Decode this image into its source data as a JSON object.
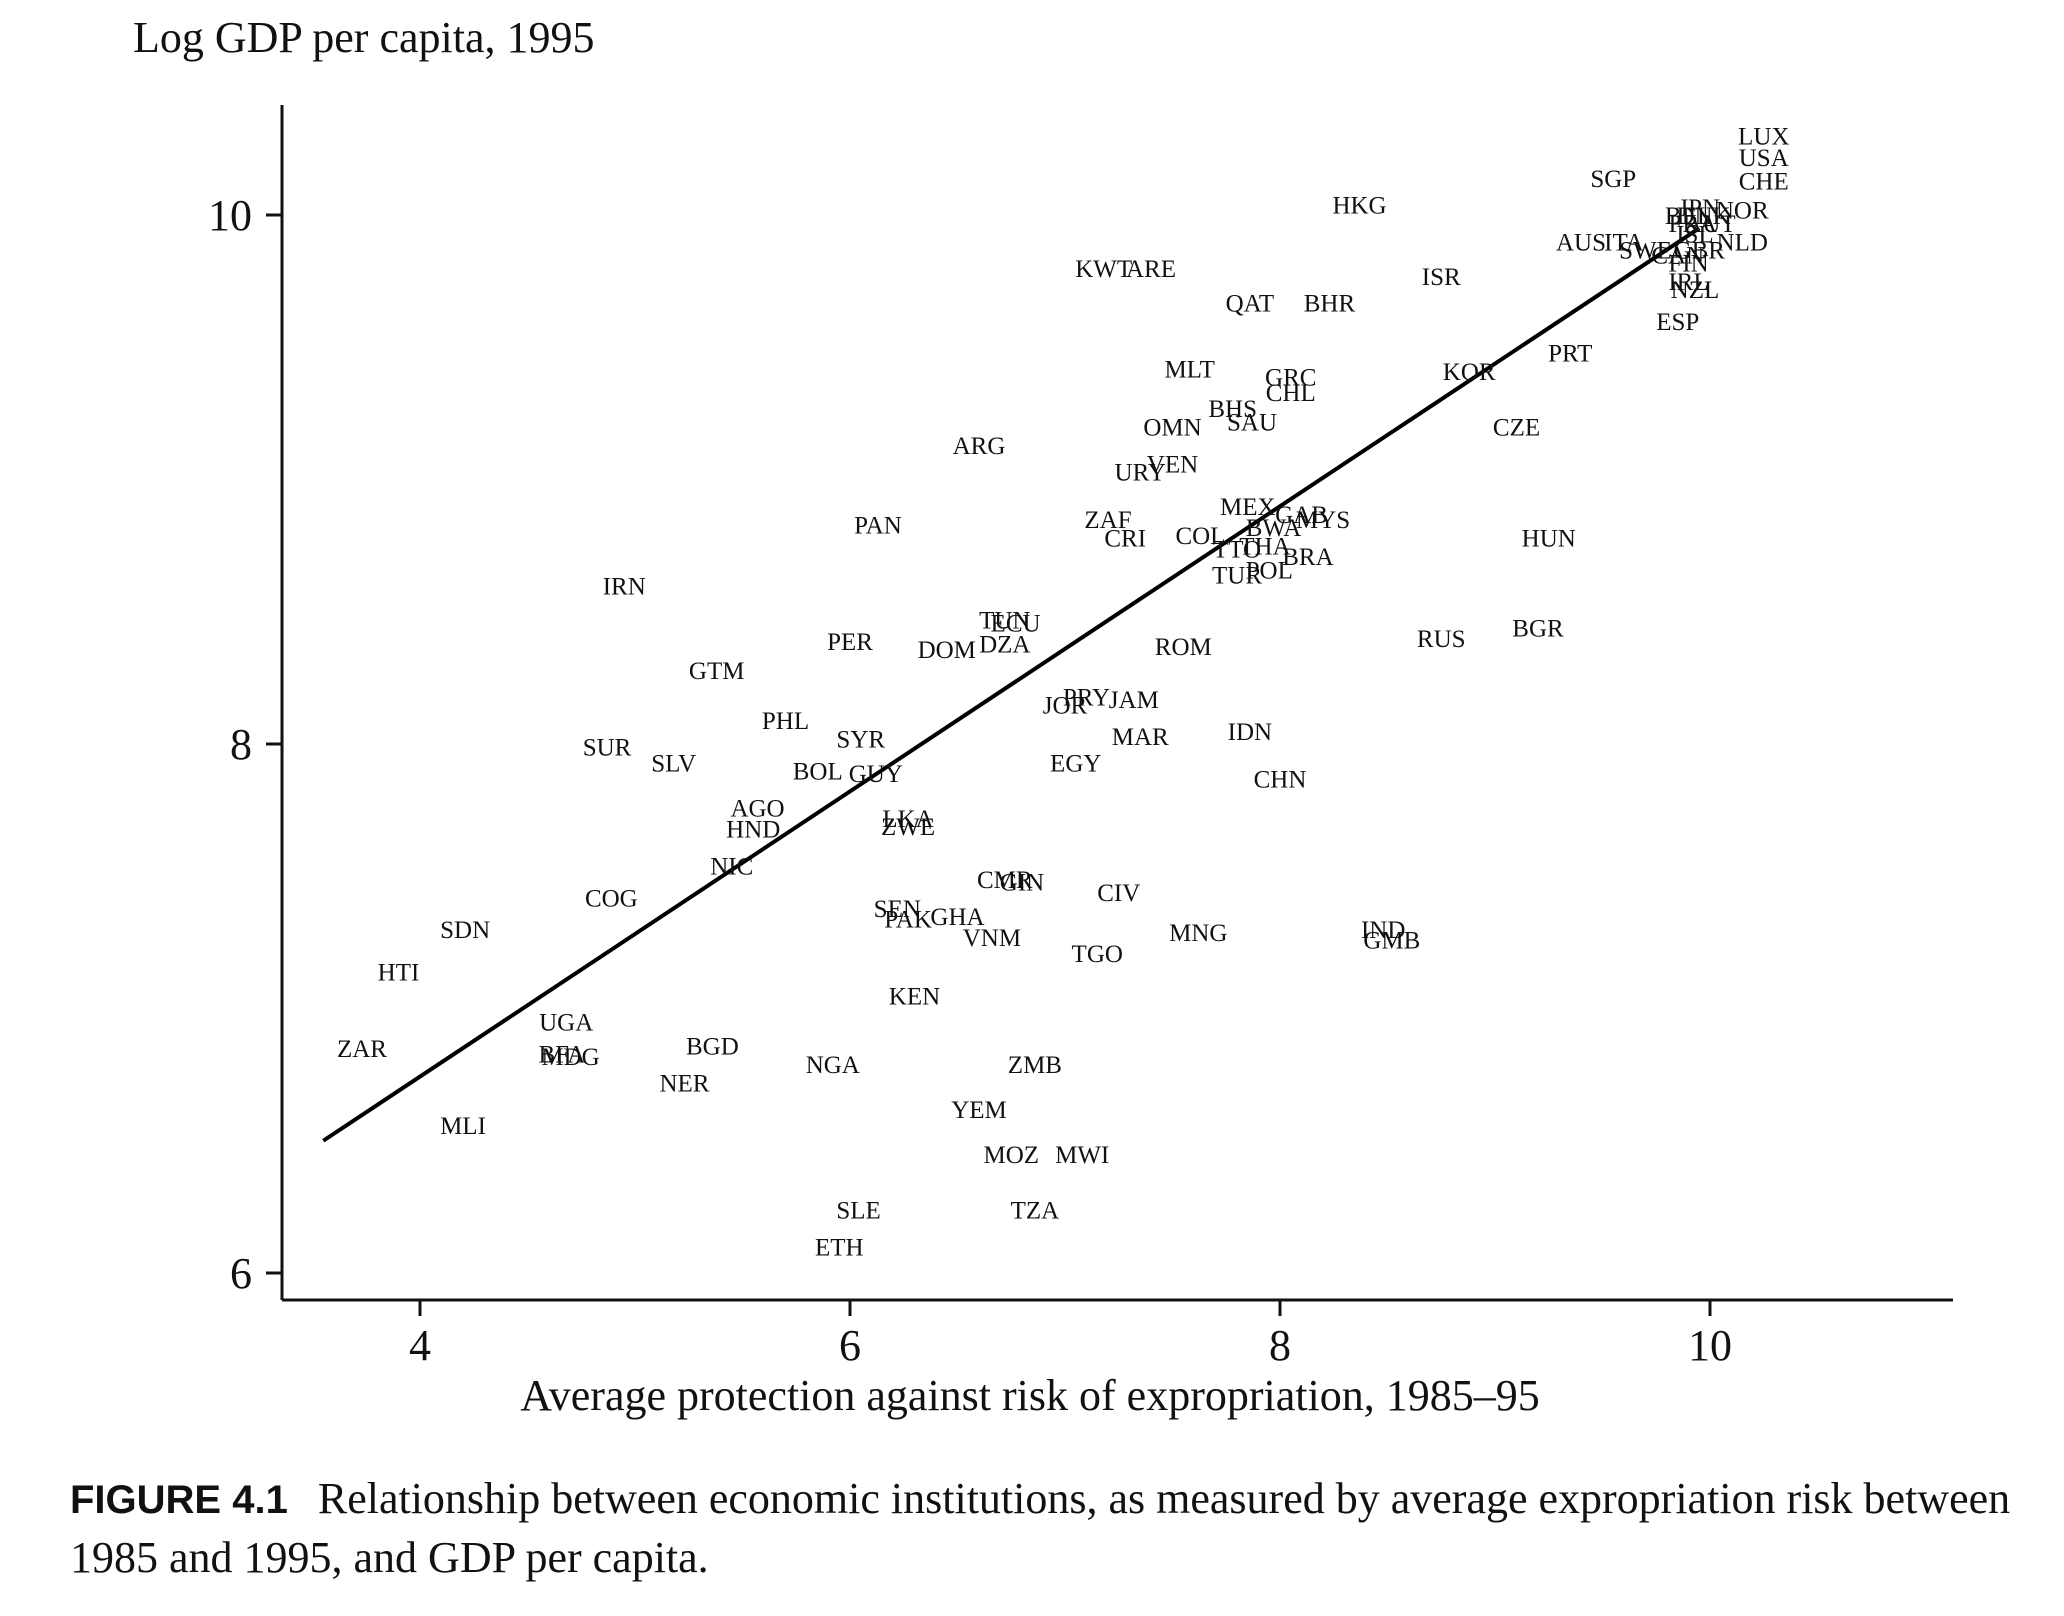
{
  "chart_data": {
    "type": "scatter",
    "ylabel": "Log GDP per capita, 1995",
    "xlabel": "Average protection against risk of expropriation, 1985–95",
    "x_ticks": [
      "4",
      "6",
      "8",
      "10"
    ],
    "y_ticks": [
      "6",
      "8",
      "10"
    ],
    "xlim": [
      3.4,
      11.2
    ],
    "ylim": [
      5.9,
      10.4
    ],
    "grid": false,
    "fit_line": {
      "x": [
        3.55,
        9.95
      ],
      "y": [
        6.5,
        9.95
      ]
    },
    "points": [
      {
        "label": "LUX",
        "x": 10.25,
        "y": 10.3
      },
      {
        "label": "USA",
        "x": 10.25,
        "y": 10.22
      },
      {
        "label": "CHE",
        "x": 10.25,
        "y": 10.13
      },
      {
        "label": "SGP",
        "x": 9.55,
        "y": 10.14
      },
      {
        "label": "HKG",
        "x": 8.37,
        "y": 10.04
      },
      {
        "label": "JPN",
        "x": 9.95,
        "y": 10.03
      },
      {
        "label": "NOR",
        "x": 10.15,
        "y": 10.02
      },
      {
        "label": "BEL",
        "x": 9.9,
        "y": 10.0
      },
      {
        "label": "DNK",
        "x": 9.97,
        "y": 10.0
      },
      {
        "label": "FRA",
        "x": 9.92,
        "y": 9.97
      },
      {
        "label": "AUT",
        "x": 10.0,
        "y": 9.97
      },
      {
        "label": "ISL",
        "x": 9.93,
        "y": 9.93
      },
      {
        "label": "AUS",
        "x": 9.4,
        "y": 9.9
      },
      {
        "label": "ITA",
        "x": 9.6,
        "y": 9.9
      },
      {
        "label": "SWE",
        "x": 9.7,
        "y": 9.87
      },
      {
        "label": "GBR",
        "x": 9.95,
        "y": 9.87
      },
      {
        "label": "NLD",
        "x": 10.15,
        "y": 9.9
      },
      {
        "label": "CAN",
        "x": 9.85,
        "y": 9.85
      },
      {
        "label": "FIN",
        "x": 9.9,
        "y": 9.82
      },
      {
        "label": "IRL",
        "x": 9.9,
        "y": 9.75
      },
      {
        "label": "NZL",
        "x": 9.93,
        "y": 9.72
      },
      {
        "label": "ESP",
        "x": 9.85,
        "y": 9.6
      },
      {
        "label": "ISR",
        "x": 8.75,
        "y": 9.77
      },
      {
        "label": "KWT",
        "x": 7.18,
        "y": 9.8
      },
      {
        "label": "ARE",
        "x": 7.4,
        "y": 9.8
      },
      {
        "label": "QAT",
        "x": 7.86,
        "y": 9.67
      },
      {
        "label": "BHR",
        "x": 8.23,
        "y": 9.67
      },
      {
        "label": "PRT",
        "x": 9.35,
        "y": 9.48
      },
      {
        "label": "KOR",
        "x": 8.88,
        "y": 9.41
      },
      {
        "label": "MLT",
        "x": 7.58,
        "y": 9.42
      },
      {
        "label": "GRC",
        "x": 8.05,
        "y": 9.39
      },
      {
        "label": "CHL",
        "x": 8.05,
        "y": 9.33
      },
      {
        "label": "BHS",
        "x": 7.78,
        "y": 9.27
      },
      {
        "label": "SAU",
        "x": 7.87,
        "y": 9.22
      },
      {
        "label": "CZE",
        "x": 9.1,
        "y": 9.2
      },
      {
        "label": "OMN",
        "x": 7.5,
        "y": 9.2
      },
      {
        "label": "ARG",
        "x": 6.6,
        "y": 9.13
      },
      {
        "label": "URY",
        "x": 7.35,
        "y": 9.03
      },
      {
        "label": "VEN",
        "x": 7.5,
        "y": 9.06
      },
      {
        "label": "MEX",
        "x": 7.85,
        "y": 8.9
      },
      {
        "label": "GAB",
        "x": 8.1,
        "y": 8.87
      },
      {
        "label": "MYS",
        "x": 8.2,
        "y": 8.85
      },
      {
        "label": "BWA",
        "x": 7.97,
        "y": 8.82
      },
      {
        "label": "ZAF",
        "x": 7.2,
        "y": 8.85
      },
      {
        "label": "PAN",
        "x": 6.13,
        "y": 8.83
      },
      {
        "label": "CRI",
        "x": 7.28,
        "y": 8.78
      },
      {
        "label": "COL",
        "x": 7.63,
        "y": 8.79
      },
      {
        "label": "THA",
        "x": 7.93,
        "y": 8.75
      },
      {
        "label": "TTO",
        "x": 7.8,
        "y": 8.74
      },
      {
        "label": "BRA",
        "x": 8.13,
        "y": 8.71
      },
      {
        "label": "HUN",
        "x": 9.25,
        "y": 8.78
      },
      {
        "label": "TUR",
        "x": 7.8,
        "y": 8.64
      },
      {
        "label": "POL",
        "x": 7.95,
        "y": 8.66
      },
      {
        "label": "IRN",
        "x": 4.95,
        "y": 8.6
      },
      {
        "label": "TUN",
        "x": 6.72,
        "y": 8.47
      },
      {
        "label": "ECU",
        "x": 6.77,
        "y": 8.46
      },
      {
        "label": "DZA",
        "x": 6.72,
        "y": 8.38
      },
      {
        "label": "DOM",
        "x": 6.45,
        "y": 8.36
      },
      {
        "label": "PER",
        "x": 6.0,
        "y": 8.39
      },
      {
        "label": "ROM",
        "x": 7.55,
        "y": 8.37
      },
      {
        "label": "RUS",
        "x": 8.75,
        "y": 8.4
      },
      {
        "label": "BGR",
        "x": 9.2,
        "y": 8.44
      },
      {
        "label": "GTM",
        "x": 5.38,
        "y": 8.28
      },
      {
        "label": "JOR",
        "x": 7.0,
        "y": 8.15
      },
      {
        "label": "PRY",
        "x": 7.1,
        "y": 8.18
      },
      {
        "label": "JAM",
        "x": 7.32,
        "y": 8.17
      },
      {
        "label": "PHL",
        "x": 5.7,
        "y": 8.09
      },
      {
        "label": "MAR",
        "x": 7.35,
        "y": 8.03
      },
      {
        "label": "IDN",
        "x": 7.86,
        "y": 8.05
      },
      {
        "label": "SYR",
        "x": 6.05,
        "y": 8.02
      },
      {
        "label": "SUR",
        "x": 4.87,
        "y": 7.99
      },
      {
        "label": "SLV",
        "x": 5.18,
        "y": 7.93
      },
      {
        "label": "BOL",
        "x": 5.85,
        "y": 7.9
      },
      {
        "label": "GUY",
        "x": 6.12,
        "y": 7.89
      },
      {
        "label": "EGY",
        "x": 7.05,
        "y": 7.93
      },
      {
        "label": "CHN",
        "x": 8.0,
        "y": 7.87
      },
      {
        "label": "AGO",
        "x": 5.57,
        "y": 7.76
      },
      {
        "label": "HND",
        "x": 5.55,
        "y": 7.68
      },
      {
        "label": "LKA",
        "x": 6.27,
        "y": 7.72
      },
      {
        "label": "ZWE",
        "x": 6.27,
        "y": 7.69
      },
      {
        "label": "NIC",
        "x": 5.45,
        "y": 7.54
      },
      {
        "label": "CMR",
        "x": 6.72,
        "y": 7.49
      },
      {
        "label": "GIN",
        "x": 6.8,
        "y": 7.48
      },
      {
        "label": "CIV",
        "x": 7.25,
        "y": 7.44
      },
      {
        "label": "COG",
        "x": 4.89,
        "y": 7.42
      },
      {
        "label": "SEN",
        "x": 6.22,
        "y": 7.38
      },
      {
        "label": "PAK",
        "x": 6.27,
        "y": 7.34
      },
      {
        "label": "GHA",
        "x": 6.5,
        "y": 7.35
      },
      {
        "label": "VNM",
        "x": 6.66,
        "y": 7.27
      },
      {
        "label": "SDN",
        "x": 4.21,
        "y": 7.3
      },
      {
        "label": "MNG",
        "x": 7.62,
        "y": 7.29
      },
      {
        "label": "IND",
        "x": 8.48,
        "y": 7.3
      },
      {
        "label": "GMB",
        "x": 8.52,
        "y": 7.26
      },
      {
        "label": "TGO",
        "x": 7.15,
        "y": 7.21
      },
      {
        "label": "HTI",
        "x": 3.9,
        "y": 7.14
      },
      {
        "label": "KEN",
        "x": 6.3,
        "y": 7.05
      },
      {
        "label": "UGA",
        "x": 4.68,
        "y": 6.95
      },
      {
        "label": "ZAR",
        "x": 3.73,
        "y": 6.85
      },
      {
        "label": "BFA",
        "x": 4.66,
        "y": 6.83
      },
      {
        "label": "MDG",
        "x": 4.7,
        "y": 6.82
      },
      {
        "label": "BGD",
        "x": 5.36,
        "y": 6.86
      },
      {
        "label": "NGA",
        "x": 5.92,
        "y": 6.79
      },
      {
        "label": "ZMB",
        "x": 6.86,
        "y": 6.79
      },
      {
        "label": "NER",
        "x": 5.23,
        "y": 6.72
      },
      {
        "label": "YEM",
        "x": 6.6,
        "y": 6.62
      },
      {
        "label": "MLI",
        "x": 4.2,
        "y": 6.56
      },
      {
        "label": "MOZ",
        "x": 6.75,
        "y": 6.45
      },
      {
        "label": "MWI",
        "x": 7.08,
        "y": 6.45
      },
      {
        "label": "SLE",
        "x": 6.04,
        "y": 6.24
      },
      {
        "label": "TZA",
        "x": 6.86,
        "y": 6.24
      },
      {
        "label": "ETH",
        "x": 5.95,
        "y": 6.1
      }
    ]
  },
  "caption": {
    "label": "FIGURE 4.1",
    "text": "Relationship between economic institutions, as measured by average expropriation risk between 1985 and 1995, and GDP per capita."
  }
}
